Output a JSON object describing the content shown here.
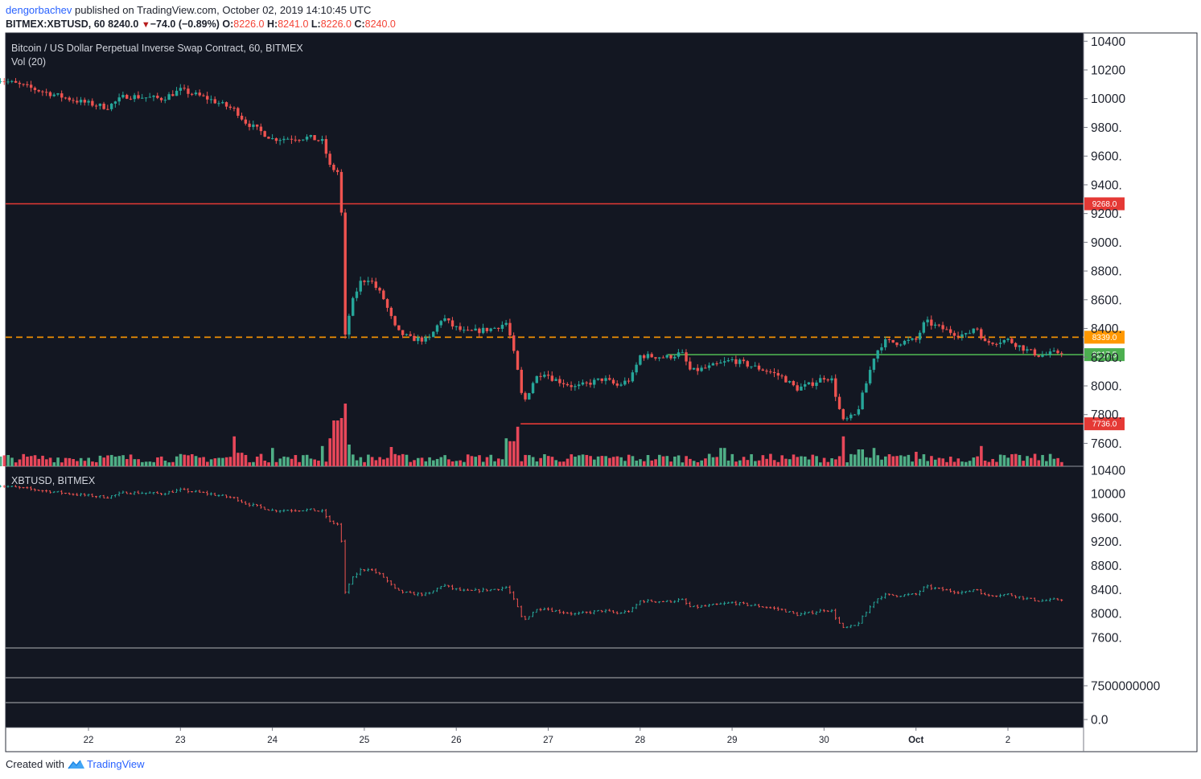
{
  "header": {
    "author": "dengorbachev",
    "published": " published on TradingView.com, October 02, 2019 14:10:45 UTC",
    "symbol": "BITMEX:XBTUSD, 60",
    "last": "8240.0",
    "change": "−74.0 (−0.89%)",
    "o_label": "O:",
    "o": "8226.0",
    "h_label": "H:",
    "h": "8241.0",
    "l_label": "L:",
    "l": "8226.0",
    "c_label": "C:",
    "c": "8240.0"
  },
  "footer": {
    "created_with": "Created with",
    "brand": "TradingView"
  },
  "colors": {
    "bg": "#131722",
    "up": "#26a69a",
    "down": "#ef5350",
    "up_vol": "#4fae86",
    "down_vol": "#e8475a",
    "orange": "#ff9800",
    "green_line": "#4caf50",
    "red_line": "#e53935"
  },
  "chart_data": [
    {
      "type": "candlestick",
      "title": "Bitcoin / US Dollar Perpetual Inverse Swap Contract, 60, BITMEX",
      "volume_label": "Vol (20)",
      "x_ticks": [
        "22",
        "23",
        "24",
        "25",
        "26",
        "27",
        "28",
        "29",
        "30",
        "Oct",
        "2"
      ],
      "y_ticks": [
        "10400",
        "10200",
        "10000",
        "9800.",
        "9600.",
        "9400.",
        "9200.",
        "9000.",
        "8800.",
        "8600.",
        "8400.",
        "8200.",
        "8000.",
        "7800.",
        "7600."
      ],
      "ylim": [
        7450,
        10420
      ],
      "horizontal_lines": [
        {
          "value": 9268.0,
          "label": "9268.0",
          "style": "solid",
          "color": "red"
        },
        {
          "value": 8339.0,
          "label": "8339.0",
          "style": "dashed",
          "color": "orange"
        },
        {
          "value": 8217.5,
          "label": "8217.5",
          "style": "solid",
          "color": "green",
          "x_start_day": 28.3
        },
        {
          "value": 7736.0,
          "label": "7736.0",
          "style": "solid",
          "color": "red",
          "x_start_day": 26.7
        }
      ],
      "price_path_keypoints": [
        [
          21.0,
          10140
        ],
        [
          21.5,
          10050
        ],
        [
          21.9,
          9980
        ],
        [
          22.2,
          9940
        ],
        [
          22.4,
          10020
        ],
        [
          22.8,
          10000
        ],
        [
          23.0,
          10060
        ],
        [
          23.3,
          10000
        ],
        [
          23.6,
          9920
        ],
        [
          23.7,
          9840
        ],
        [
          24.0,
          9720
        ],
        [
          24.4,
          9730
        ],
        [
          24.55,
          9700
        ],
        [
          24.62,
          9530
        ],
        [
          24.73,
          9480
        ],
        [
          24.75,
          9200
        ],
        [
          24.76,
          8000
        ],
        [
          24.78,
          8300
        ],
        [
          24.85,
          8550
        ],
        [
          24.95,
          8720
        ],
        [
          25.05,
          8750
        ],
        [
          25.2,
          8620
        ],
        [
          25.35,
          8380
        ],
        [
          25.5,
          8330
        ],
        [
          25.7,
          8320
        ],
        [
          25.85,
          8480
        ],
        [
          25.95,
          8420
        ],
        [
          26.1,
          8370
        ],
        [
          26.4,
          8400
        ],
        [
          26.55,
          8440
        ],
        [
          26.6,
          8300
        ],
        [
          26.7,
          8000
        ],
        [
          26.72,
          7860
        ],
        [
          26.85,
          8050
        ],
        [
          26.95,
          8100
        ],
        [
          27.05,
          8050
        ],
        [
          27.3,
          7990
        ],
        [
          27.6,
          8050
        ],
        [
          27.75,
          8000
        ],
        [
          27.9,
          8050
        ],
        [
          28.0,
          8210
        ],
        [
          28.3,
          8200
        ],
        [
          28.45,
          8230
        ],
        [
          28.55,
          8100
        ],
        [
          28.75,
          8130
        ],
        [
          29.0,
          8180
        ],
        [
          29.15,
          8150
        ],
        [
          29.4,
          8100
        ],
        [
          29.55,
          8060
        ],
        [
          29.7,
          7980
        ],
        [
          29.85,
          8010
        ],
        [
          30.0,
          8060
        ],
        [
          30.08,
          8050
        ],
        [
          30.2,
          7750
        ],
        [
          30.35,
          7800
        ],
        [
          30.45,
          8000
        ],
        [
          30.55,
          8220
        ],
        [
          30.65,
          8310
        ],
        [
          30.8,
          8300
        ],
        [
          31.0,
          8320
        ],
        [
          31.1,
          8450
        ],
        [
          31.2,
          8420
        ],
        [
          31.4,
          8370
        ],
        [
          31.55,
          8350
        ],
        [
          31.65,
          8420
        ],
        [
          31.75,
          8300
        ],
        [
          32.0,
          8320
        ],
        [
          32.2,
          8250
        ],
        [
          32.35,
          8210
        ],
        [
          32.6,
          8240
        ]
      ],
      "volume_spikes": [
        {
          "day": 23.58,
          "ratio": 0.62
        },
        {
          "day": 23.65,
          "ratio": 0.28
        },
        {
          "day": 24.0,
          "ratio": 0.38
        },
        {
          "day": 24.55,
          "ratio": 0.42
        },
        {
          "day": 24.62,
          "ratio": 0.58
        },
        {
          "day": 24.69,
          "ratio": 0.95
        },
        {
          "day": 24.75,
          "ratio": 1.0
        },
        {
          "day": 24.79,
          "ratio": 1.3
        },
        {
          "day": 24.83,
          "ratio": 0.45
        },
        {
          "day": 25.3,
          "ratio": 0.4
        },
        {
          "day": 26.55,
          "ratio": 0.58
        },
        {
          "day": 26.6,
          "ratio": 0.52
        },
        {
          "day": 26.67,
          "ratio": 0.82
        },
        {
          "day": 26.95,
          "ratio": 0.25
        },
        {
          "day": 28.9,
          "ratio": 0.38
        },
        {
          "day": 30.2,
          "ratio": 0.62
        },
        {
          "day": 30.4,
          "ratio": 0.35
        },
        {
          "day": 30.55,
          "ratio": 0.38
        },
        {
          "day": 31.0,
          "ratio": 0.3
        },
        {
          "day": 31.72,
          "ratio": 0.42
        }
      ]
    },
    {
      "type": "line",
      "title": "XBTUSD, BITMEX",
      "y_ticks": [
        "10400",
        "10000",
        "9600.",
        "9200.",
        "8800.",
        "8400.",
        "8000.",
        "7600."
      ],
      "ylim": [
        7450,
        10430
      ],
      "series": [
        {
          "values_source": "same price path as main pane"
        }
      ]
    },
    {
      "type": "indicator",
      "y_ticks": [
        "7500000000",
        "0.0"
      ]
    }
  ]
}
